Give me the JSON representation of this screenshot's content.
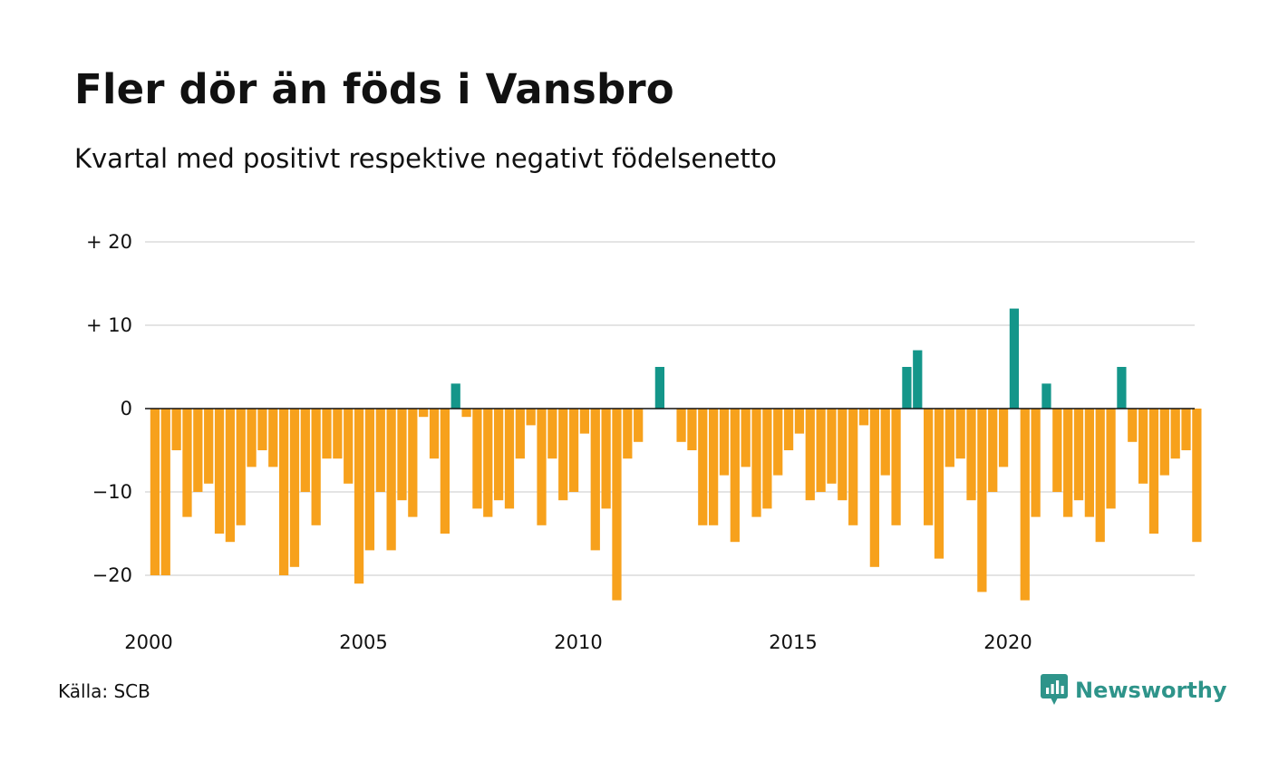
{
  "header": {
    "title": "Fler dör än föds i Vansbro",
    "subtitle": "Kvartal med positivt respektive negativt födelsenetto"
  },
  "footer": {
    "source": "Källa: SCB",
    "brand": "Newsworthy",
    "brand_icon": "newsworthy-chart-bubble-icon"
  },
  "colors": {
    "positive": "#14968a",
    "negative": "#f7a11c",
    "grid": "#dcdcdc",
    "zero_line": "#111111",
    "brand": "#2e948a"
  },
  "chart_data": {
    "type": "bar",
    "title": "Fler dör än föds i Vansbro",
    "subtitle": "Kvartal med positivt respektive negativt födelsenetto",
    "xlabel": "",
    "ylabel": "",
    "x_start_year": 2000,
    "periods_per_year": 4,
    "xlim": [
      2000,
      2024.5
    ],
    "ylim": [
      -25,
      22
    ],
    "y_ticks": [
      {
        "value": 20,
        "label": "+ 20"
      },
      {
        "value": 10,
        "label": "+ 10"
      },
      {
        "value": 0,
        "label": "0"
      },
      {
        "value": -10,
        "label": "−10"
      },
      {
        "value": -20,
        "label": "−20"
      }
    ],
    "x_ticks": [
      {
        "value": 2000,
        "label": "2000"
      },
      {
        "value": 2005,
        "label": "2005"
      },
      {
        "value": 2010,
        "label": "2010"
      },
      {
        "value": 2015,
        "label": "2015"
      },
      {
        "value": 2020,
        "label": "2020"
      }
    ],
    "grid": true,
    "legend": "none",
    "values": [
      -20,
      -20,
      -5,
      -13,
      -10,
      -9,
      -15,
      -16,
      -14,
      -7,
      -5,
      -7,
      -20,
      -19,
      -10,
      -14,
      -6,
      -6,
      -9,
      -21,
      -17,
      -10,
      -17,
      -11,
      -13,
      -1,
      -6,
      -15,
      3,
      -1,
      -12,
      -13,
      -11,
      -12,
      -6,
      -2,
      -14,
      -6,
      -11,
      -10,
      -3,
      -17,
      -12,
      -23,
      -6,
      -4,
      0,
      5,
      0,
      -4,
      -5,
      -14,
      -14,
      -8,
      -16,
      -7,
      -13,
      -12,
      -8,
      -5,
      -3,
      -11,
      -10,
      -9,
      -11,
      -14,
      -2,
      -19,
      -8,
      -14,
      5,
      7,
      -14,
      -18,
      -7,
      -6,
      -11,
      -22,
      -10,
      -7,
      12,
      -23,
      -13,
      3,
      -10,
      -13,
      -11,
      -13,
      -16,
      -12,
      5,
      -4,
      -9,
      -15,
      -8,
      -6,
      -5,
      -16
    ]
  }
}
